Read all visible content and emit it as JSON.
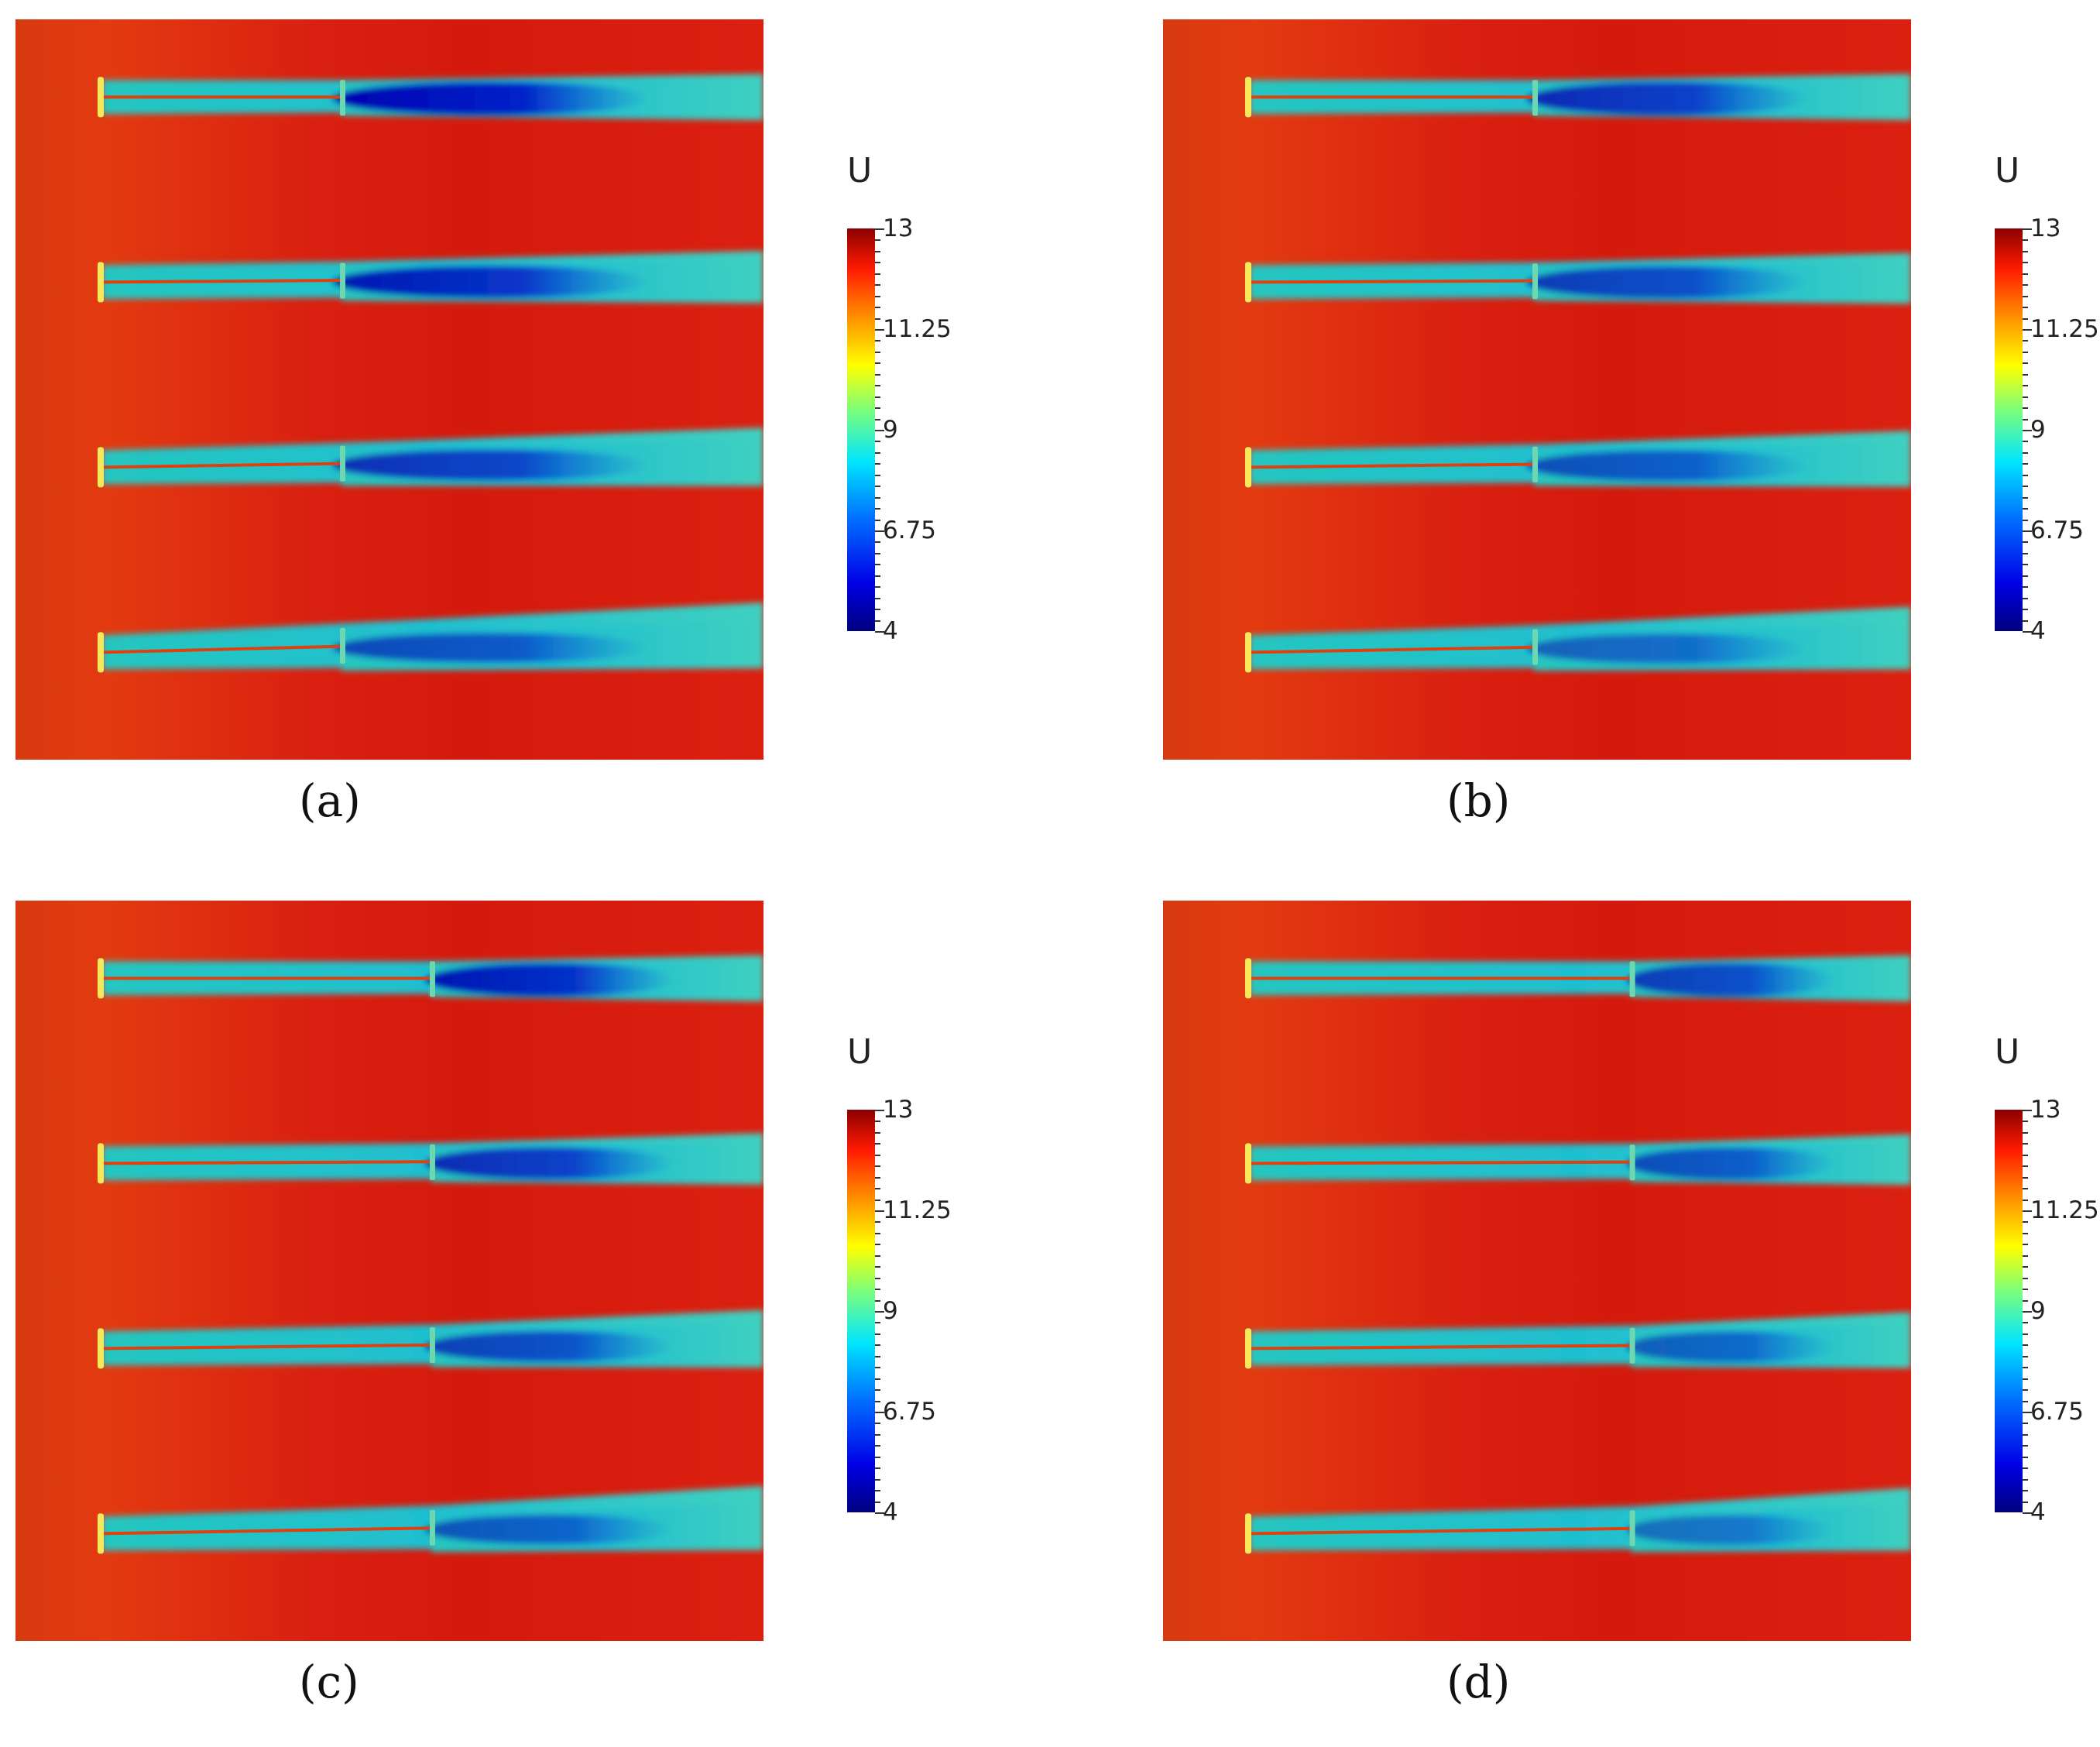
{
  "panels": [
    {
      "caption": "(a)"
    },
    {
      "caption": "(b)"
    },
    {
      "caption": "(c)"
    },
    {
      "caption": "(d)"
    }
  ],
  "colorbar": {
    "title": "U",
    "tick_labels": [
      "13",
      "11.25",
      "9",
      "6.75",
      "4"
    ],
    "min": 4,
    "max": 13,
    "colormap": "jet",
    "colors": [
      "#00007f",
      "#0000e6",
      "#0070ff",
      "#00e5ff",
      "#7dff7a",
      "#ffff00",
      "#ff9000",
      "#ff1a00",
      "#8b0000"
    ]
  },
  "wake_rows_per_panel": 4
}
